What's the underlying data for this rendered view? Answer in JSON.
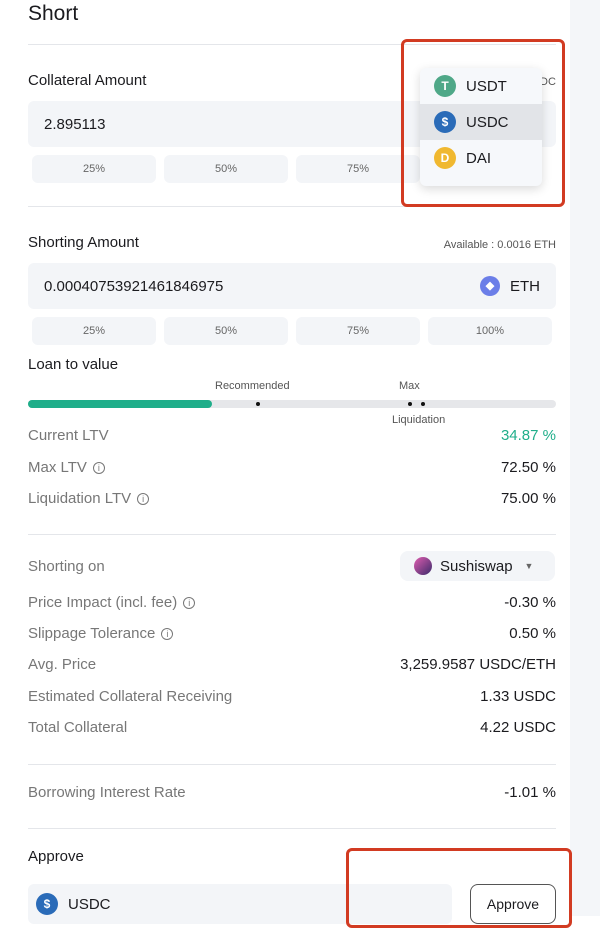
{
  "title": "Short",
  "collateral": {
    "label": "Collateral Amount",
    "available_fragment": "DC",
    "value": "2.895113",
    "pcts": [
      "25%",
      "50%",
      "75%"
    ]
  },
  "dropdown": {
    "items": [
      {
        "label": "USDT",
        "color": "#4fa888",
        "icon": "T"
      },
      {
        "label": "USDC",
        "color": "#2a6bb8",
        "icon": "$"
      },
      {
        "label": "DAI",
        "color": "#f0b830",
        "icon": "D"
      }
    ],
    "selected": "USDC"
  },
  "shorting": {
    "label": "Shorting Amount",
    "available": "Available : 0.0016 ETH",
    "value": "0.00040753921461846975",
    "token": "ETH",
    "pcts": [
      "25%",
      "50%",
      "75%",
      "100%"
    ]
  },
  "ltv": {
    "label": "Loan to value",
    "recommended": "Recommended",
    "max": "Max",
    "liquidation": "Liquidation",
    "current_fraction": 0.3487,
    "fill_color": "#1fae8a",
    "rows": [
      {
        "k": "Current LTV",
        "v": "34.87 %",
        "info": false
      },
      {
        "k": "Max LTV",
        "v": "72.50 %",
        "info": true
      },
      {
        "k": "Liquidation LTV",
        "v": "75.00 %",
        "info": true
      }
    ]
  },
  "details": {
    "shorting_on_label": "Shorting on",
    "dex": "Sushiswap",
    "rows": [
      {
        "k": "Price Impact (incl. fee)",
        "v": "-0.30 %",
        "info": true
      },
      {
        "k": "Slippage Tolerance",
        "v": "0.50 %",
        "info": true
      },
      {
        "k": "Avg. Price",
        "v": "3,259.9587 USDC/ETH",
        "info": false
      },
      {
        "k": "Estimated Collateral Receiving",
        "v": "1.33 USDC",
        "info": false
      },
      {
        "k": "Total Collateral",
        "v": "4.22 USDC",
        "info": false
      }
    ],
    "interest_label": "Borrowing Interest Rate",
    "interest": "-1.01 %"
  },
  "approve": {
    "label": "Approve",
    "token": "USDC",
    "button": "Approve"
  }
}
